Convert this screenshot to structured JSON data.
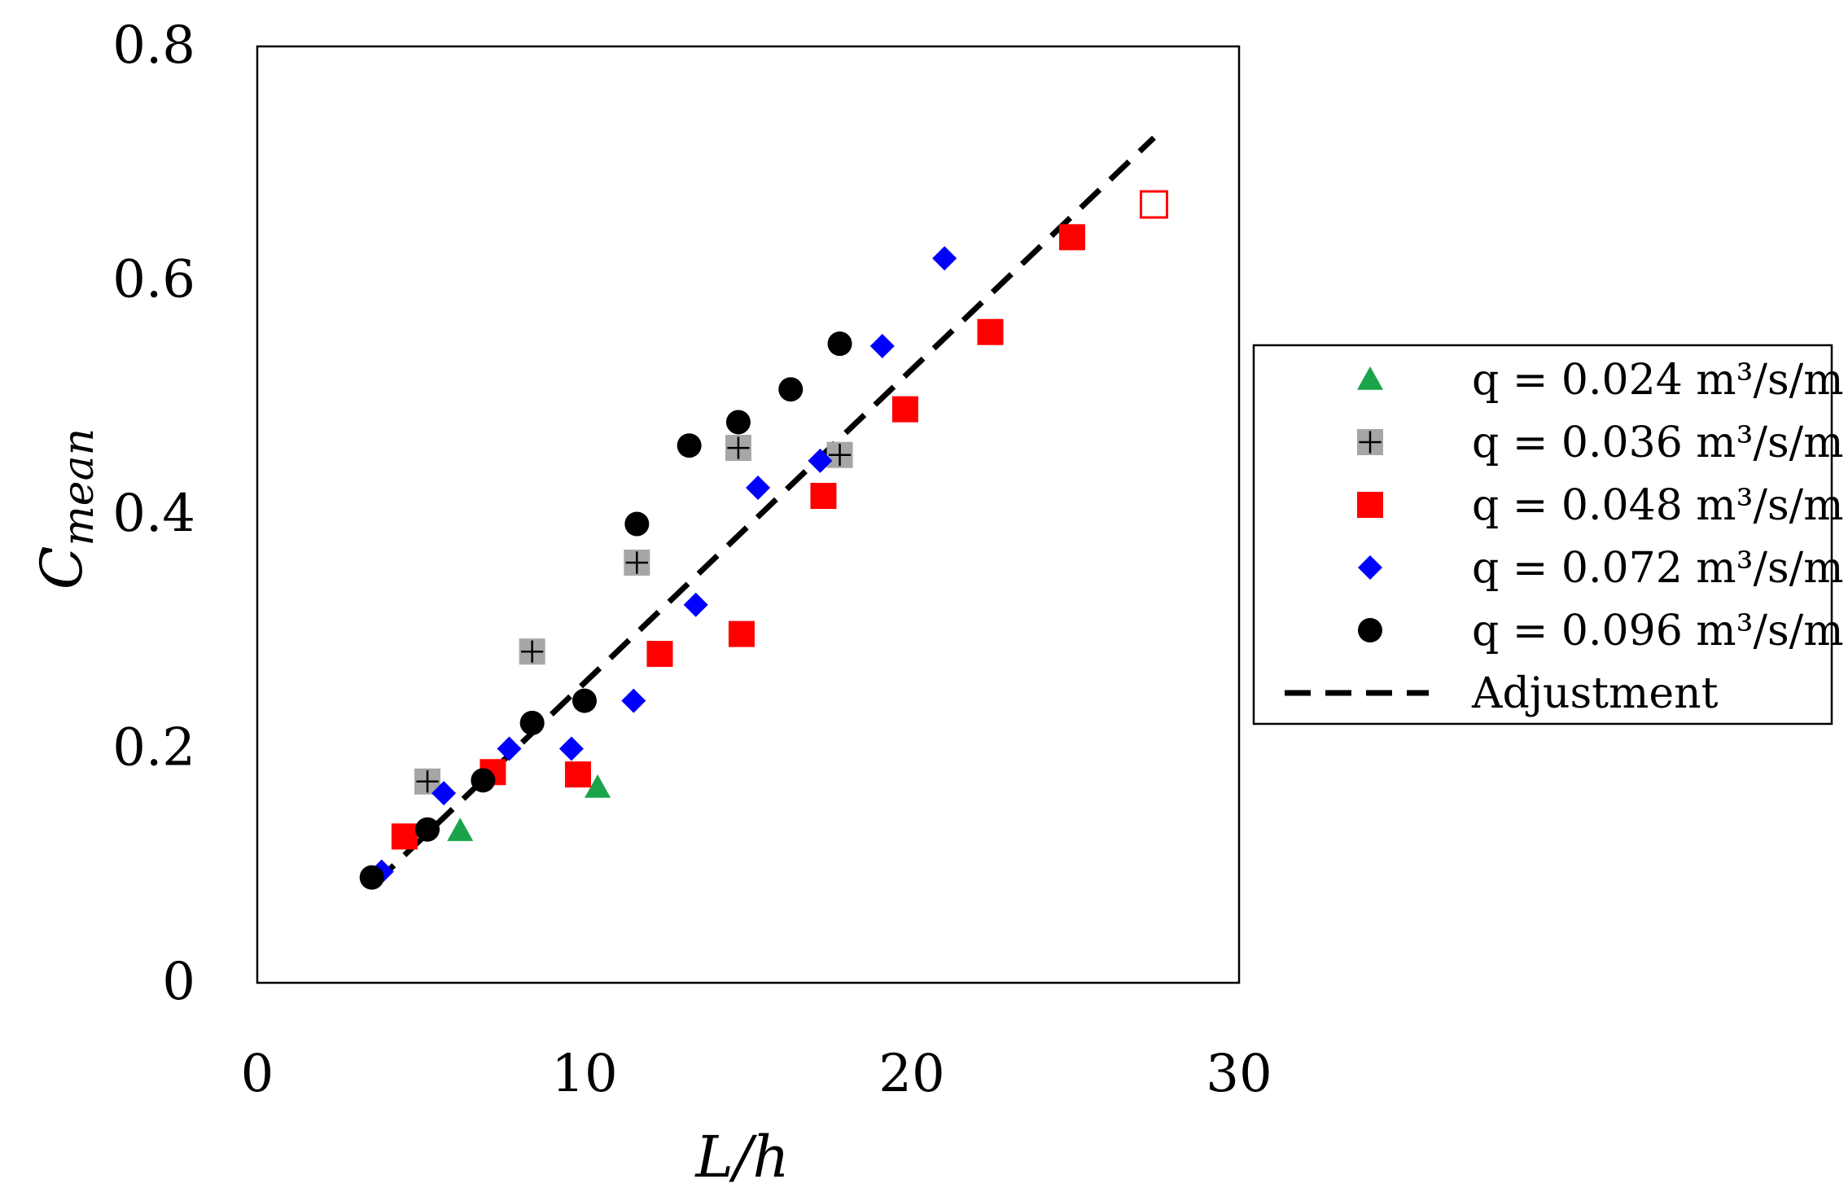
{
  "chart_data": {
    "type": "scatter",
    "xlabel": "L/h",
    "ylabel": {
      "main": "C",
      "subscript": "mean"
    },
    "xlim": [
      0,
      30
    ],
    "ylim": [
      0,
      0.8
    ],
    "x_ticks": [
      0,
      10,
      20,
      30
    ],
    "x_tick_labels": [
      "0",
      "10",
      "20",
      "30"
    ],
    "y_ticks": [
      0,
      0.2,
      0.4,
      0.6,
      0.8
    ],
    "y_tick_labels": [
      "0",
      "0.2",
      "0.4",
      "0.6",
      "0.8"
    ],
    "grid": false,
    "legend_position": "right",
    "series": [
      {
        "name": "q = 0.024 m³/s/m",
        "marker": "triangle",
        "color": "#1aa34a",
        "points": [
          [
            6.2,
            0.13
          ],
          [
            10.4,
            0.167
          ]
        ]
      },
      {
        "name": "q = 0.036 m³/s/m",
        "marker": "square-plus",
        "color": "#a6a6a6",
        "points": [
          [
            5.2,
            0.172
          ],
          [
            8.4,
            0.283
          ],
          [
            11.6,
            0.359
          ],
          [
            14.7,
            0.457
          ],
          [
            17.8,
            0.451
          ]
        ]
      },
      {
        "name": "q = 0.048 m³/s/m",
        "marker": "square",
        "color": "#ff0000",
        "points": [
          [
            4.5,
            0.125
          ],
          [
            7.2,
            0.18
          ],
          [
            9.8,
            0.178
          ],
          [
            12.3,
            0.281
          ],
          [
            14.8,
            0.298
          ],
          [
            17.3,
            0.416
          ],
          [
            19.8,
            0.49
          ],
          [
            22.4,
            0.556
          ],
          [
            24.9,
            0.637
          ]
        ],
        "hollow_points": [
          [
            27.4,
            0.665
          ]
        ]
      },
      {
        "name": "q = 0.072 m³/s/m",
        "marker": "diamond",
        "color": "#0000ff",
        "points": [
          [
            3.8,
            0.095
          ],
          [
            5.7,
            0.162
          ],
          [
            7.7,
            0.2
          ],
          [
            9.6,
            0.2
          ],
          [
            11.5,
            0.241
          ],
          [
            13.4,
            0.323
          ],
          [
            15.3,
            0.423
          ],
          [
            17.2,
            0.446
          ],
          [
            19.1,
            0.544
          ],
          [
            21.0,
            0.619
          ]
        ]
      },
      {
        "name": "q = 0.096 m³/s/m",
        "marker": "circle",
        "color": "#000000",
        "points": [
          [
            3.5,
            0.09
          ],
          [
            5.2,
            0.131
          ],
          [
            6.9,
            0.173
          ],
          [
            8.4,
            0.222
          ],
          [
            10.0,
            0.241
          ],
          [
            11.6,
            0.392
          ],
          [
            13.2,
            0.459
          ],
          [
            14.7,
            0.479
          ],
          [
            16.3,
            0.507
          ],
          [
            17.8,
            0.546
          ]
        ]
      }
    ],
    "fit_line": {
      "name": "Adjustment",
      "style": "dashed",
      "color": "#000000",
      "x": [
        3.6,
        27.4
      ],
      "y": [
        0.085,
        0.722
      ]
    }
  }
}
